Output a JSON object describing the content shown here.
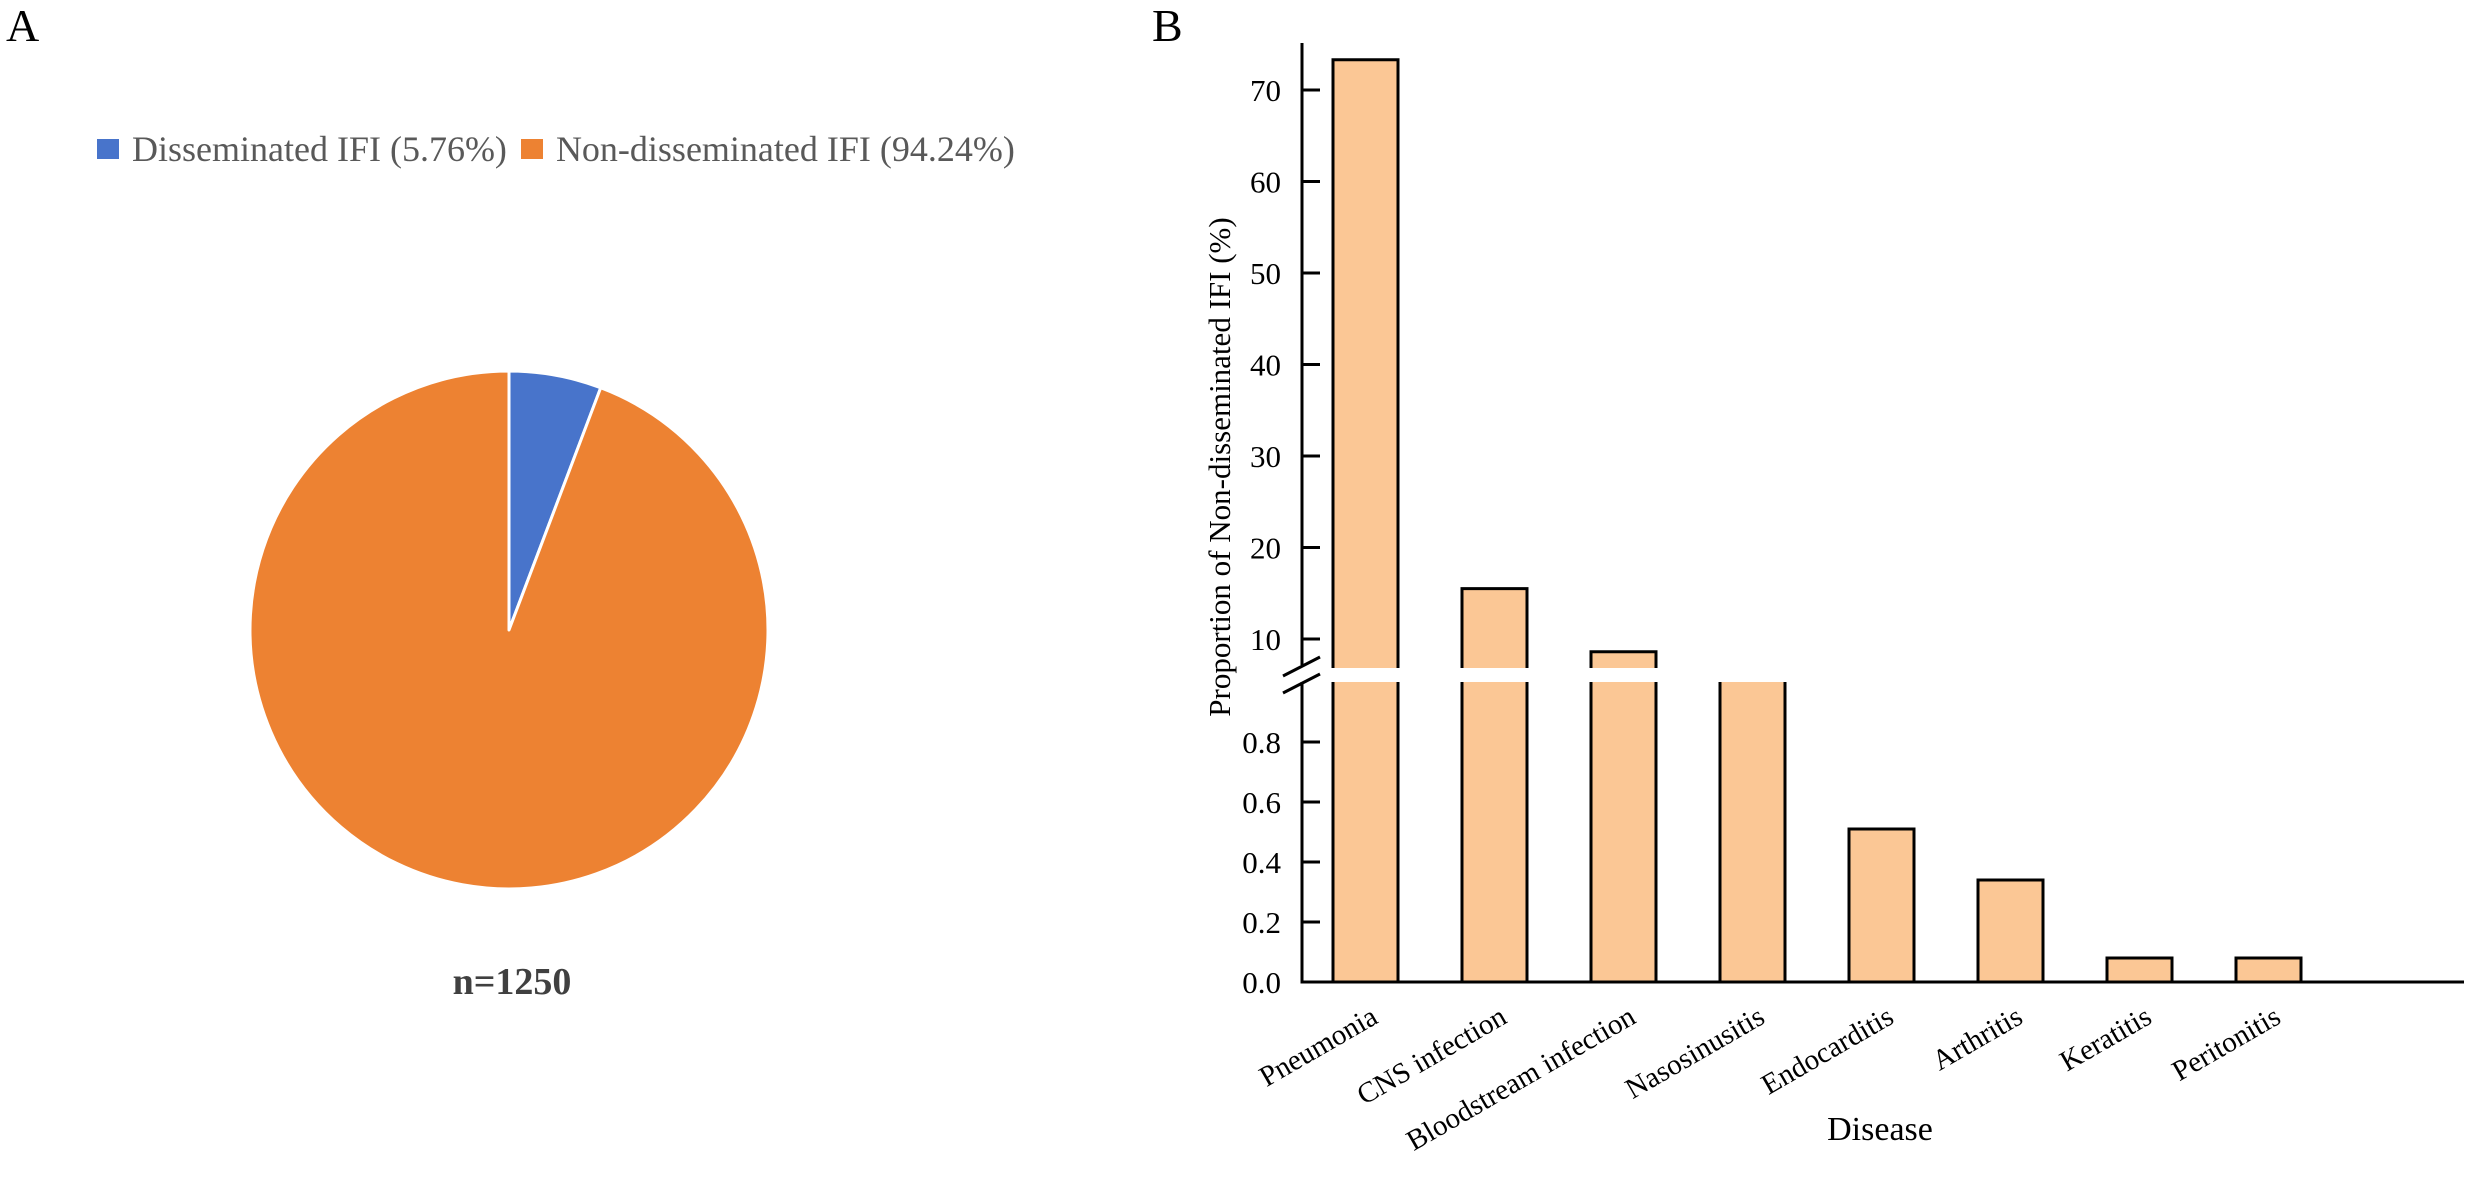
{
  "panels": {
    "a": {
      "label": "A"
    },
    "b": {
      "label": "B"
    }
  },
  "colors": {
    "disseminated": "#4874CB",
    "non_disseminated": "#ED8232",
    "bar_fill": "#FBC795",
    "bar_stroke": "#000000",
    "legend_text": "#595959",
    "n_text": "#404040"
  },
  "chart_data": [
    {
      "type": "pie",
      "panel": "A",
      "title": "",
      "legend_placement": "top",
      "legend": [
        "Disseminated IFI (5.76%)",
        "Non-disseminated IFI (94.24%)"
      ],
      "slices": [
        {
          "name": "Disseminated IFI",
          "value": 5.76,
          "color": "#4874CB"
        },
        {
          "name": "Non-disseminated IFI",
          "value": 94.24,
          "color": "#ED8232"
        }
      ],
      "start_angle_deg": 0,
      "direction": "clockwise",
      "annotation": "n=1250"
    },
    {
      "type": "bar",
      "panel": "B",
      "title": "",
      "xlabel": "Disease",
      "ylabel": "Proportion of Non-disseminated IFI (%)",
      "categories": [
        "Pneumonia",
        "CNS infection",
        "Bloodstream infection",
        "Nasosinusitis",
        "Endocarditis",
        "Arthritis",
        "Keratitis",
        "Peritonitis"
      ],
      "values": [
        73.3,
        15.5,
        8.6,
        5.0,
        0.51,
        0.34,
        0.08,
        0.08
      ],
      "broken_axis": true,
      "lower_segment": {
        "ylim": [
          0,
          1.0
        ],
        "ticks": [
          "0.0",
          "0.2",
          "0.4",
          "0.6",
          "0.8"
        ],
        "tick_values": [
          0,
          0.2,
          0.4,
          0.6,
          0.8
        ]
      },
      "upper_segment": {
        "ylim": [
          7,
          75
        ],
        "ticks": [
          "10",
          "20",
          "30",
          "40",
          "50",
          "60",
          "70"
        ],
        "tick_values": [
          10,
          20,
          30,
          40,
          50,
          60,
          70
        ]
      },
      "grid": false,
      "legend_placement": "none"
    }
  ]
}
